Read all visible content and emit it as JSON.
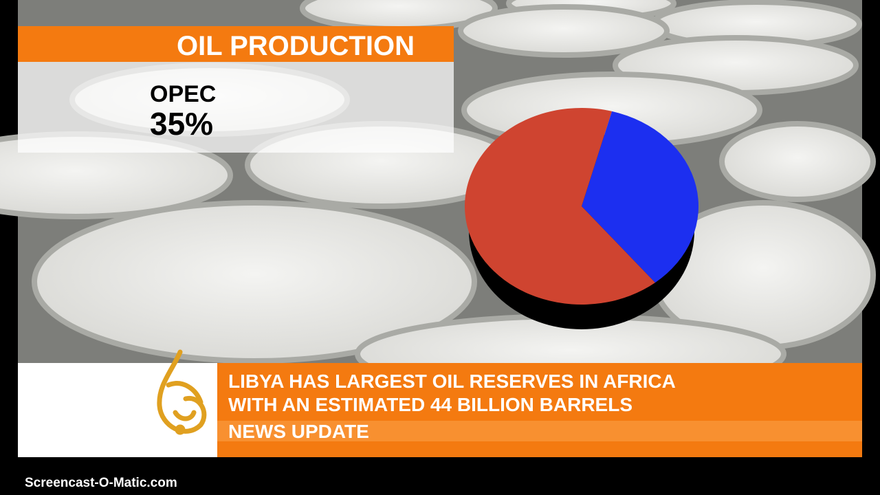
{
  "header": {
    "title": "OIL PRODUCTION"
  },
  "chart_data": {
    "type": "pie",
    "categories": [
      "OPEC",
      null
    ],
    "values": [
      35,
      65
    ],
    "value_labels": [
      "35%",
      null
    ],
    "colors": [
      "#1c2ff0",
      "#cf4430"
    ]
  },
  "ticker": {
    "lines": [
      "LIBYA HAS LARGEST OIL RESERVES IN AFRICA",
      "WITH AN ESTIMATED 44 BILLION BARRELS"
    ],
    "label": "NEWS UPDATE"
  },
  "watermark": "Screencast-O-Matic.com"
}
